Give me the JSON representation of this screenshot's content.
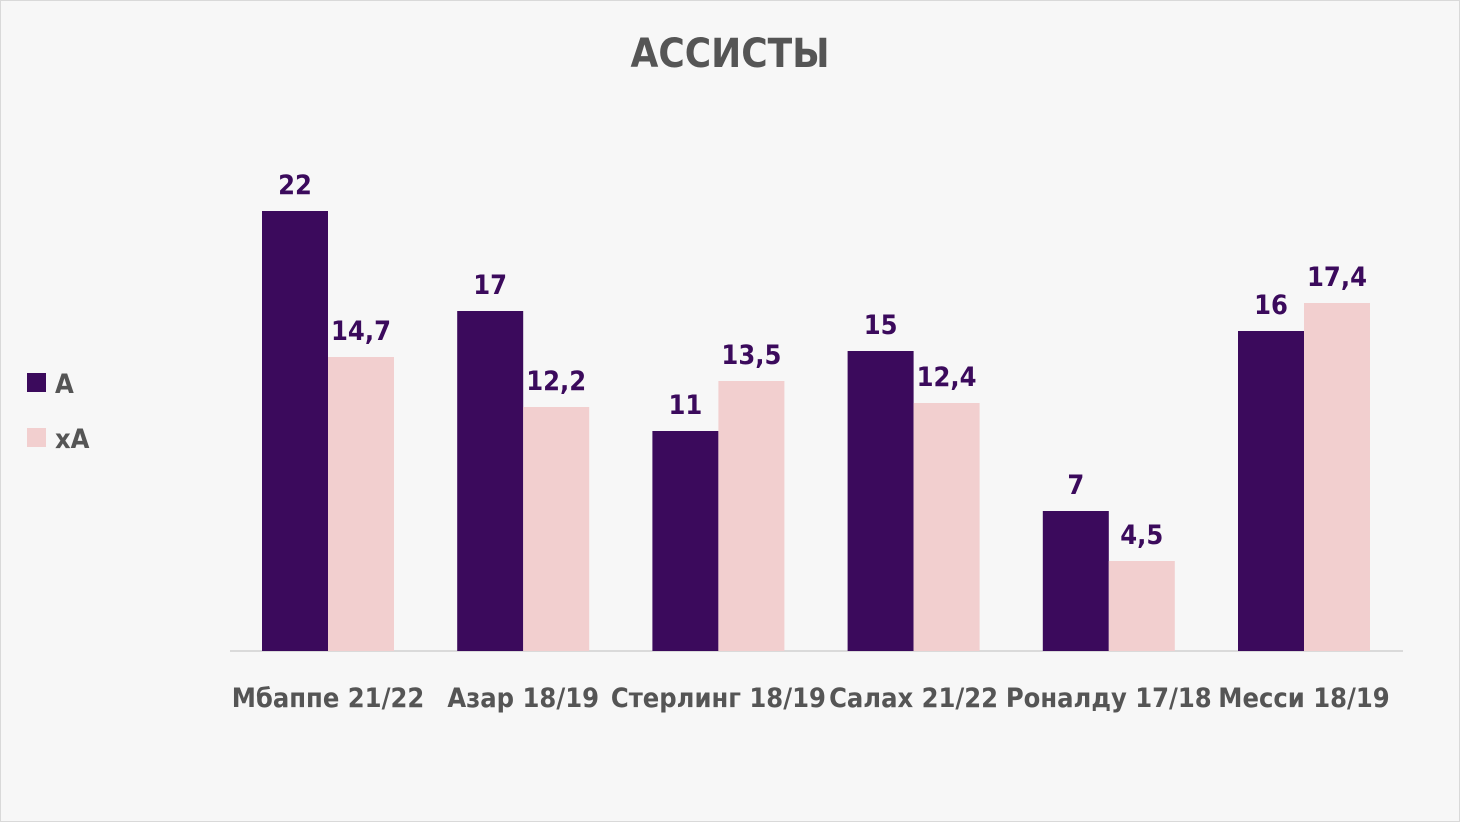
{
  "chart_data": {
    "type": "bar",
    "title": "АССИСТЫ",
    "categories": [
      "Мбаппе 21/22",
      "Азар 18/19",
      "Стерлинг 18/19",
      "Салах 21/22",
      "Роналду 17/18",
      "Месси 18/19"
    ],
    "series": [
      {
        "name": "A",
        "color": "#3b0a5c",
        "values": [
          22,
          17,
          11,
          15,
          7,
          16
        ],
        "labels": [
          "22",
          "17",
          "11",
          "15",
          "7",
          "16"
        ]
      },
      {
        "name": "xA",
        "color": "#f2cfcf",
        "values": [
          14.7,
          12.2,
          13.5,
          12.4,
          4.5,
          17.4
        ],
        "labels": [
          "14,7",
          "12,2",
          "13,5",
          "12,4",
          "4,5",
          "17,4"
        ]
      }
    ],
    "ylim": [
      0,
      22
    ],
    "grid": false,
    "legend_position": "left",
    "xlabel": "",
    "ylabel": ""
  }
}
